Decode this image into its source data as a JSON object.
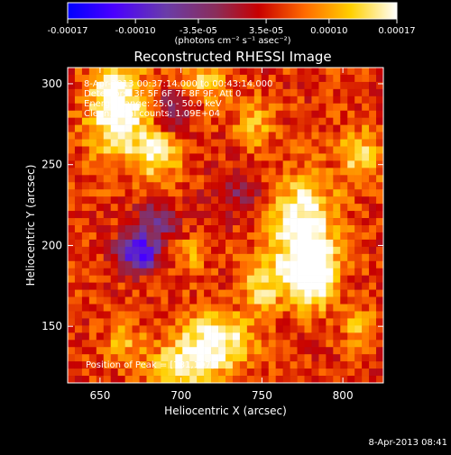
{
  "chart_data": {
    "type": "heatmap",
    "title": "Reconstructed RHESSI Image",
    "xlabel": "Heliocentric X (arcsec)",
    "ylabel": "Heliocentric Y (arcsec)",
    "xlim": [
      630,
      825
    ],
    "ylim": [
      115,
      310
    ],
    "xticks": [
      650,
      700,
      750,
      800
    ],
    "xtick_labels": [
      "650",
      "700",
      "750",
      "800"
    ],
    "yticks": [
      150,
      200,
      250,
      300
    ],
    "ytick_labels": [
      "150",
      "200",
      "250",
      "300"
    ],
    "colorbar": {
      "min": -0.00017,
      "max": 0.00017,
      "ticks": [
        -0.00017,
        -0.0001,
        -3.5e-05,
        3.5e-05,
        0.0001,
        0.00017
      ],
      "tick_labels": [
        "-0.00017",
        "-0.00010",
        "-3.5e-05",
        "3.5e-05",
        "0.00010",
        "0.00017"
      ],
      "units_label": "(photons cm⁻² s⁻¹ asec⁻²)",
      "colors": [
        "#0000ff",
        "#4a00ff",
        "#6a3ca8",
        "#8a2d5a",
        "#c80000",
        "#ff6a00",
        "#ffd000",
        "#ffffff"
      ]
    },
    "annotations": [
      "8-Apr-2013 00:37:14.000 to 00:43:14.000",
      "Detectors: 3F 5F 6F 7F 8F 9F, Att 0",
      "Energy Range: 25.0 - 50.0 keV",
      "Clean. Total counts: 1.09E+04"
    ],
    "peak_label": "Position of Peak = [781,197]",
    "peak": [
      781,
      197
    ],
    "intensity_sources": [
      {
        "x": 660,
        "y": 285,
        "amp": 0.00016,
        "sx": 12,
        "sy": 20
      },
      {
        "x": 685,
        "y": 258,
        "amp": 0.00012,
        "sx": 10,
        "sy": 12
      },
      {
        "x": 715,
        "y": 300,
        "amp": 8e-05,
        "sx": 10,
        "sy": 8
      },
      {
        "x": 775,
        "y": 210,
        "amp": 0.00015,
        "sx": 14,
        "sy": 22
      },
      {
        "x": 781,
        "y": 180,
        "amp": 0.00016,
        "sx": 10,
        "sy": 12
      },
      {
        "x": 720,
        "y": 140,
        "amp": 0.00014,
        "sx": 16,
        "sy": 12
      },
      {
        "x": 700,
        "y": 125,
        "amp": 0.0001,
        "sx": 14,
        "sy": 8
      },
      {
        "x": 810,
        "y": 255,
        "amp": 9e-05,
        "sx": 8,
        "sy": 12
      },
      {
        "x": 745,
        "y": 275,
        "amp": 7e-05,
        "sx": 8,
        "sy": 10
      },
      {
        "x": 750,
        "y": 175,
        "amp": 9e-05,
        "sx": 8,
        "sy": 12
      },
      {
        "x": 810,
        "y": 150,
        "amp": 6e-05,
        "sx": 8,
        "sy": 8
      },
      {
        "x": 665,
        "y": 140,
        "amp": 6e-05,
        "sx": 8,
        "sy": 8
      },
      {
        "x": 705,
        "y": 195,
        "amp": 5e-05,
        "sx": 8,
        "sy": 8
      },
      {
        "x": 674,
        "y": 195,
        "amp": -0.00016,
        "sx": 9,
        "sy": 8
      },
      {
        "x": 685,
        "y": 215,
        "amp": -8e-05,
        "sx": 10,
        "sy": 10
      },
      {
        "x": 695,
        "y": 280,
        "amp": -9e-05,
        "sx": 8,
        "sy": 10
      },
      {
        "x": 735,
        "y": 230,
        "amp": -6e-05,
        "sx": 12,
        "sy": 10
      }
    ]
  },
  "footer_timestamp": "8-Apr-2013 08:41"
}
